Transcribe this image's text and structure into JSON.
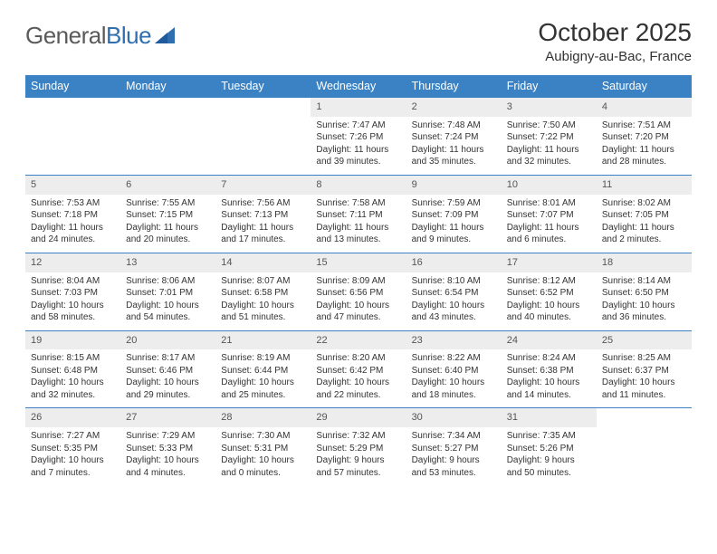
{
  "logo": {
    "text1": "General",
    "text2": "Blue"
  },
  "header": {
    "title": "October 2025",
    "location": "Aubigny-au-Bac, France"
  },
  "colors": {
    "header_bar": "#3b82c4",
    "daynum_bg": "#ededed",
    "text": "#333333",
    "logo_gray": "#5a5a5a",
    "logo_blue": "#2f6fb0"
  },
  "weekdays": [
    "Sunday",
    "Monday",
    "Tuesday",
    "Wednesday",
    "Thursday",
    "Friday",
    "Saturday"
  ],
  "weeks": [
    [
      {
        "n": "",
        "sunrise": "",
        "sunset": "",
        "daylight": ""
      },
      {
        "n": "",
        "sunrise": "",
        "sunset": "",
        "daylight": ""
      },
      {
        "n": "",
        "sunrise": "",
        "sunset": "",
        "daylight": ""
      },
      {
        "n": "1",
        "sunrise": "Sunrise: 7:47 AM",
        "sunset": "Sunset: 7:26 PM",
        "daylight": "Daylight: 11 hours and 39 minutes."
      },
      {
        "n": "2",
        "sunrise": "Sunrise: 7:48 AM",
        "sunset": "Sunset: 7:24 PM",
        "daylight": "Daylight: 11 hours and 35 minutes."
      },
      {
        "n": "3",
        "sunrise": "Sunrise: 7:50 AM",
        "sunset": "Sunset: 7:22 PM",
        "daylight": "Daylight: 11 hours and 32 minutes."
      },
      {
        "n": "4",
        "sunrise": "Sunrise: 7:51 AM",
        "sunset": "Sunset: 7:20 PM",
        "daylight": "Daylight: 11 hours and 28 minutes."
      }
    ],
    [
      {
        "n": "5",
        "sunrise": "Sunrise: 7:53 AM",
        "sunset": "Sunset: 7:18 PM",
        "daylight": "Daylight: 11 hours and 24 minutes."
      },
      {
        "n": "6",
        "sunrise": "Sunrise: 7:55 AM",
        "sunset": "Sunset: 7:15 PM",
        "daylight": "Daylight: 11 hours and 20 minutes."
      },
      {
        "n": "7",
        "sunrise": "Sunrise: 7:56 AM",
        "sunset": "Sunset: 7:13 PM",
        "daylight": "Daylight: 11 hours and 17 minutes."
      },
      {
        "n": "8",
        "sunrise": "Sunrise: 7:58 AM",
        "sunset": "Sunset: 7:11 PM",
        "daylight": "Daylight: 11 hours and 13 minutes."
      },
      {
        "n": "9",
        "sunrise": "Sunrise: 7:59 AM",
        "sunset": "Sunset: 7:09 PM",
        "daylight": "Daylight: 11 hours and 9 minutes."
      },
      {
        "n": "10",
        "sunrise": "Sunrise: 8:01 AM",
        "sunset": "Sunset: 7:07 PM",
        "daylight": "Daylight: 11 hours and 6 minutes."
      },
      {
        "n": "11",
        "sunrise": "Sunrise: 8:02 AM",
        "sunset": "Sunset: 7:05 PM",
        "daylight": "Daylight: 11 hours and 2 minutes."
      }
    ],
    [
      {
        "n": "12",
        "sunrise": "Sunrise: 8:04 AM",
        "sunset": "Sunset: 7:03 PM",
        "daylight": "Daylight: 10 hours and 58 minutes."
      },
      {
        "n": "13",
        "sunrise": "Sunrise: 8:06 AM",
        "sunset": "Sunset: 7:01 PM",
        "daylight": "Daylight: 10 hours and 54 minutes."
      },
      {
        "n": "14",
        "sunrise": "Sunrise: 8:07 AM",
        "sunset": "Sunset: 6:58 PM",
        "daylight": "Daylight: 10 hours and 51 minutes."
      },
      {
        "n": "15",
        "sunrise": "Sunrise: 8:09 AM",
        "sunset": "Sunset: 6:56 PM",
        "daylight": "Daylight: 10 hours and 47 minutes."
      },
      {
        "n": "16",
        "sunrise": "Sunrise: 8:10 AM",
        "sunset": "Sunset: 6:54 PM",
        "daylight": "Daylight: 10 hours and 43 minutes."
      },
      {
        "n": "17",
        "sunrise": "Sunrise: 8:12 AM",
        "sunset": "Sunset: 6:52 PM",
        "daylight": "Daylight: 10 hours and 40 minutes."
      },
      {
        "n": "18",
        "sunrise": "Sunrise: 8:14 AM",
        "sunset": "Sunset: 6:50 PM",
        "daylight": "Daylight: 10 hours and 36 minutes."
      }
    ],
    [
      {
        "n": "19",
        "sunrise": "Sunrise: 8:15 AM",
        "sunset": "Sunset: 6:48 PM",
        "daylight": "Daylight: 10 hours and 32 minutes."
      },
      {
        "n": "20",
        "sunrise": "Sunrise: 8:17 AM",
        "sunset": "Sunset: 6:46 PM",
        "daylight": "Daylight: 10 hours and 29 minutes."
      },
      {
        "n": "21",
        "sunrise": "Sunrise: 8:19 AM",
        "sunset": "Sunset: 6:44 PM",
        "daylight": "Daylight: 10 hours and 25 minutes."
      },
      {
        "n": "22",
        "sunrise": "Sunrise: 8:20 AM",
        "sunset": "Sunset: 6:42 PM",
        "daylight": "Daylight: 10 hours and 22 minutes."
      },
      {
        "n": "23",
        "sunrise": "Sunrise: 8:22 AM",
        "sunset": "Sunset: 6:40 PM",
        "daylight": "Daylight: 10 hours and 18 minutes."
      },
      {
        "n": "24",
        "sunrise": "Sunrise: 8:24 AM",
        "sunset": "Sunset: 6:38 PM",
        "daylight": "Daylight: 10 hours and 14 minutes."
      },
      {
        "n": "25",
        "sunrise": "Sunrise: 8:25 AM",
        "sunset": "Sunset: 6:37 PM",
        "daylight": "Daylight: 10 hours and 11 minutes."
      }
    ],
    [
      {
        "n": "26",
        "sunrise": "Sunrise: 7:27 AM",
        "sunset": "Sunset: 5:35 PM",
        "daylight": "Daylight: 10 hours and 7 minutes."
      },
      {
        "n": "27",
        "sunrise": "Sunrise: 7:29 AM",
        "sunset": "Sunset: 5:33 PM",
        "daylight": "Daylight: 10 hours and 4 minutes."
      },
      {
        "n": "28",
        "sunrise": "Sunrise: 7:30 AM",
        "sunset": "Sunset: 5:31 PM",
        "daylight": "Daylight: 10 hours and 0 minutes."
      },
      {
        "n": "29",
        "sunrise": "Sunrise: 7:32 AM",
        "sunset": "Sunset: 5:29 PM",
        "daylight": "Daylight: 9 hours and 57 minutes."
      },
      {
        "n": "30",
        "sunrise": "Sunrise: 7:34 AM",
        "sunset": "Sunset: 5:27 PM",
        "daylight": "Daylight: 9 hours and 53 minutes."
      },
      {
        "n": "31",
        "sunrise": "Sunrise: 7:35 AM",
        "sunset": "Sunset: 5:26 PM",
        "daylight": "Daylight: 9 hours and 50 minutes."
      },
      {
        "n": "",
        "sunrise": "",
        "sunset": "",
        "daylight": ""
      }
    ]
  ]
}
